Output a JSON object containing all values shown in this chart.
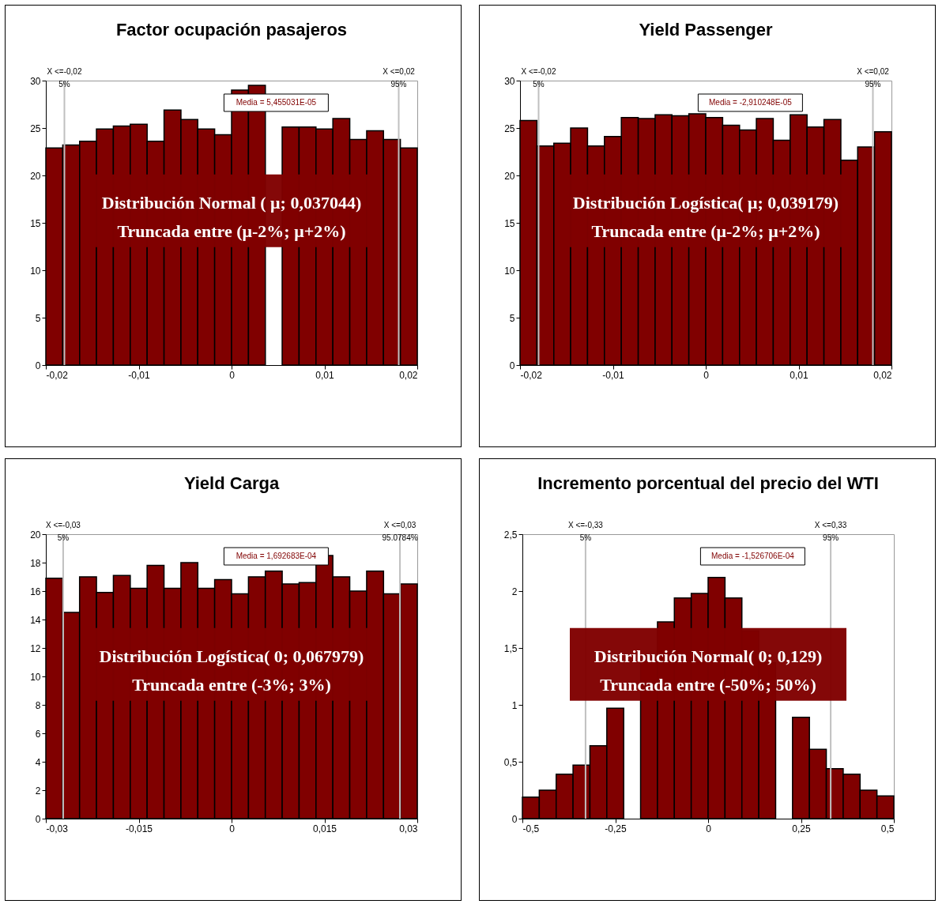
{
  "chart_data": [
    {
      "type": "histogram",
      "title": "Factor ocupación pasajeros",
      "color": "#800000",
      "bins": [
        -0.02,
        -0.01818,
        -0.01636,
        -0.01455,
        -0.01273,
        -0.01091,
        -0.00909,
        -0.00727,
        -0.00545,
        -0.00364,
        -0.00182,
        0,
        0.00182,
        0.00364,
        0.00545,
        0.00727,
        0.00909,
        0.01091,
        0.01273,
        0.01455,
        0.01636,
        0.01818,
        0.02
      ],
      "values": [
        22.9,
        23.2,
        23.6,
        24.9,
        25.2,
        25.4,
        23.6,
        26.9,
        25.9,
        24.9,
        24.3,
        29.0,
        29.5,
        null,
        25.1,
        25.1,
        24.9,
        26.0,
        23.8,
        24.7,
        23.8,
        22.9
      ],
      "xlim": [
        -0.02,
        0.02
      ],
      "xticks": [
        {
          "value": -0.02,
          "label": "-0,02"
        },
        {
          "value": -0.01,
          "label": "-0,01"
        },
        {
          "value": 0,
          "label": "0"
        },
        {
          "value": 0.01,
          "label": "0,01"
        },
        {
          "value": 0.02,
          "label": "0,02"
        }
      ],
      "ylim": [
        0,
        30
      ],
      "yticks": [
        0,
        5,
        10,
        15,
        20,
        25,
        30
      ],
      "ref_lines": [
        {
          "axis": "x",
          "value": -0.018,
          "label": "X <=-0,02\n5%",
          "color": "#c0c0c0"
        },
        {
          "axis": "x",
          "value": 0.018,
          "label": "X <=0,02\n95%",
          "color": "#c0c0c0"
        }
      ],
      "annotations": [
        "Media = 5,455031E-05",
        "Distribución Normal ( μ; 0,037044)",
        "Truncada entre (μ-2%; μ+2%)"
      ]
    },
    {
      "type": "histogram",
      "title": "Yield Passenger",
      "color": "#800000",
      "bins": [
        -0.02,
        -0.01818,
        -0.01636,
        -0.01455,
        -0.01273,
        -0.01091,
        -0.00909,
        -0.00727,
        -0.00545,
        -0.00364,
        -0.00182,
        0,
        0.00182,
        0.00364,
        0.00545,
        0.00727,
        0.00909,
        0.01091,
        0.01273,
        0.01455,
        0.01636,
        0.01818,
        0.02
      ],
      "values": [
        25.8,
        23.1,
        23.4,
        25.0,
        23.1,
        24.1,
        26.1,
        26.0,
        26.4,
        26.3,
        26.5,
        26.1,
        25.3,
        24.8,
        26.0,
        23.7,
        26.4,
        25.1,
        25.9,
        21.6,
        23.0,
        24.6
      ],
      "xlim": [
        -0.02,
        0.02
      ],
      "xticks": [
        {
          "value": -0.02,
          "label": "-0,02"
        },
        {
          "value": -0.01,
          "label": "-0,01"
        },
        {
          "value": 0,
          "label": "0"
        },
        {
          "value": 0.01,
          "label": "0,01"
        },
        {
          "value": 0.02,
          "label": "0,02"
        }
      ],
      "ylim": [
        0,
        30
      ],
      "yticks": [
        0,
        5,
        10,
        15,
        20,
        25,
        30
      ],
      "ref_lines": [
        {
          "axis": "x",
          "value": -0.018,
          "label": "X <=-0,02\n5%",
          "color": "#c0c0c0"
        },
        {
          "axis": "x",
          "value": 0.018,
          "label": "X <=0,02\n95%",
          "color": "#c0c0c0"
        }
      ],
      "annotations": [
        "Media = -2,910248E-05",
        "Distribución Logística( μ; 0,039179)",
        "Truncada entre (μ-2%; μ+2%)"
      ]
    },
    {
      "type": "histogram",
      "title": "Yield Carga",
      "color": "#800000",
      "bins": [
        -0.03,
        -0.02727,
        -0.02455,
        -0.02182,
        -0.01909,
        -0.01636,
        -0.01364,
        -0.01091,
        -0.00818,
        -0.00545,
        -0.00273,
        0,
        0.00273,
        0.00545,
        0.00818,
        0.01091,
        0.01364,
        0.01636,
        0.01909,
        0.02182,
        0.02455,
        0.02727,
        0.03
      ],
      "values": [
        16.9,
        14.5,
        17.0,
        15.9,
        17.1,
        16.2,
        17.8,
        16.2,
        18.0,
        16.2,
        16.8,
        15.8,
        17.0,
        17.4,
        16.5,
        16.6,
        18.5,
        17.0,
        16.0,
        17.4,
        15.8,
        16.5
      ],
      "xlim": [
        -0.03,
        0.03
      ],
      "xticks": [
        {
          "value": -0.03,
          "label": "-0,03"
        },
        {
          "value": -0.015,
          "label": "-0,015"
        },
        {
          "value": 0,
          "label": "0"
        },
        {
          "value": 0.015,
          "label": "0,015"
        },
        {
          "value": 0.03,
          "label": "0,03"
        }
      ],
      "ylim": [
        0,
        20
      ],
      "yticks": [
        0,
        2,
        4,
        6,
        8,
        10,
        12,
        14,
        16,
        18,
        20
      ],
      "ref_lines": [
        {
          "axis": "x",
          "value": -0.0272,
          "label": "X <=-0,03\n5%",
          "color": "#c0c0c0"
        },
        {
          "axis": "x",
          "value": 0.0272,
          "label": "X <=0,03\n95.0784%",
          "color": "#c0c0c0"
        }
      ],
      "annotations": [
        "Media = 1,692683E-04",
        "Distribución Logística( 0; 0,067979)",
        "Truncada entre (-3%; 3%)"
      ]
    },
    {
      "type": "histogram",
      "title": "Incremento porcentual del precio del WTI",
      "color": "#800000",
      "bins": [
        -0.5,
        -0.45455,
        -0.40909,
        -0.36364,
        -0.31818,
        -0.27273,
        -0.22727,
        -0.18182,
        -0.13636,
        -0.09091,
        -0.04545,
        0,
        0.04545,
        0.09091,
        0.13636,
        0.18182,
        0.22727,
        0.27273,
        0.31818,
        0.36364,
        0.40909,
        0.45455,
        0.5
      ],
      "values": [
        0.19,
        0.25,
        0.39,
        0.47,
        0.64,
        0.97,
        null,
        1.42,
        1.73,
        1.94,
        1.98,
        2.12,
        1.94,
        1.65,
        1.37,
        null,
        0.89,
        0.61,
        0.44,
        0.39,
        0.25,
        0.2
      ],
      "xlim": [
        -0.5,
        0.5
      ],
      "xticks": [
        {
          "value": -0.5,
          "label": "-0,5"
        },
        {
          "value": -0.25,
          "label": "-0,25"
        },
        {
          "value": 0,
          "label": "0"
        },
        {
          "value": 0.25,
          "label": "0,25"
        },
        {
          "value": 0.5,
          "label": "0,5"
        }
      ],
      "ylim": [
        0,
        2.5
      ],
      "yticks": [
        0,
        {
          "value": 0.5,
          "label": "0,5"
        },
        1,
        {
          "value": 1.5,
          "label": "1,5"
        },
        2,
        {
          "value": 2.5,
          "label": "2,5"
        }
      ],
      "ref_lines": [
        {
          "axis": "x",
          "value": -0.33,
          "label": "X <=-0,33\n5%",
          "color": "#c0c0c0"
        },
        {
          "axis": "x",
          "value": 0.33,
          "label": "X <=0,33\n95%",
          "color": "#c0c0c0"
        }
      ],
      "annotations": [
        "Media = -1,526706E-04",
        "Distribución Normal( 0; 0,129)",
        "Truncada entre (-50%; 50%)"
      ]
    }
  ]
}
